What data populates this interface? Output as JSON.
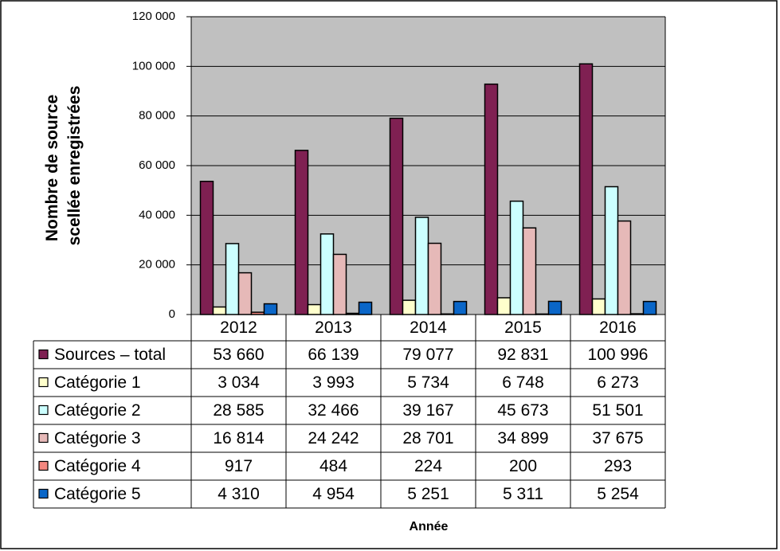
{
  "chart_data": {
    "type": "bar",
    "y_label": [
      "Nombre de source",
      "scellée enregistrées"
    ],
    "x_label": "Année",
    "categories": [
      "2012",
      "2013",
      "2014",
      "2015",
      "2016"
    ],
    "series": [
      {
        "name": "Sources – total",
        "color": "#7f2052",
        "values": [
          53660,
          66139,
          79077,
          92831,
          100996
        ],
        "value_labels": [
          "53 660",
          "66 139",
          "79 077",
          "92 831",
          "100 996"
        ]
      },
      {
        "name": "Catégorie 1",
        "color": "#ffffcc",
        "values": [
          3034,
          3993,
          5734,
          6748,
          6273
        ],
        "value_labels": [
          "3 034",
          "3 993",
          "5 734",
          "6 748",
          "6 273"
        ]
      },
      {
        "name": "Catégorie 2",
        "color": "#ccffff",
        "values": [
          28585,
          32466,
          39167,
          45673,
          51501
        ],
        "value_labels": [
          "28 585",
          "32 466",
          "39 167",
          "45 673",
          "51 501"
        ]
      },
      {
        "name": "Catégorie 3",
        "color": "#e6b9b8",
        "values": [
          16814,
          24242,
          28701,
          34899,
          37675
        ],
        "value_labels": [
          "16 814",
          "24 242",
          "28 701",
          "34 899",
          "37 675"
        ]
      },
      {
        "name": "Catégorie 4",
        "color": "#f4877f",
        "values": [
          917,
          484,
          224,
          200,
          293
        ],
        "value_labels": [
          "917",
          "484",
          "224",
          "200",
          "293"
        ]
      },
      {
        "name": "Catégorie 5",
        "color": "#0a66c8",
        "values": [
          4310,
          4954,
          5251,
          5311,
          5254
        ],
        "value_labels": [
          "4 310",
          "4 954",
          "5 251",
          "5 311",
          "5 254"
        ]
      }
    ],
    "ylim": [
      0,
      120000
    ],
    "yticks": [
      0,
      {
        "value": 20000,
        "label": "20 000"
      },
      {
        "value": 40000,
        "label": "40 000"
      },
      {
        "value": 60000,
        "label": "60 000"
      },
      {
        "value": 80000,
        "label": "80 000"
      },
      {
        "value": 100000,
        "label": "100 000"
      },
      {
        "value": 120000,
        "label": "120 000"
      }
    ],
    "grid": true,
    "plot_background": "#c0c0c0"
  }
}
